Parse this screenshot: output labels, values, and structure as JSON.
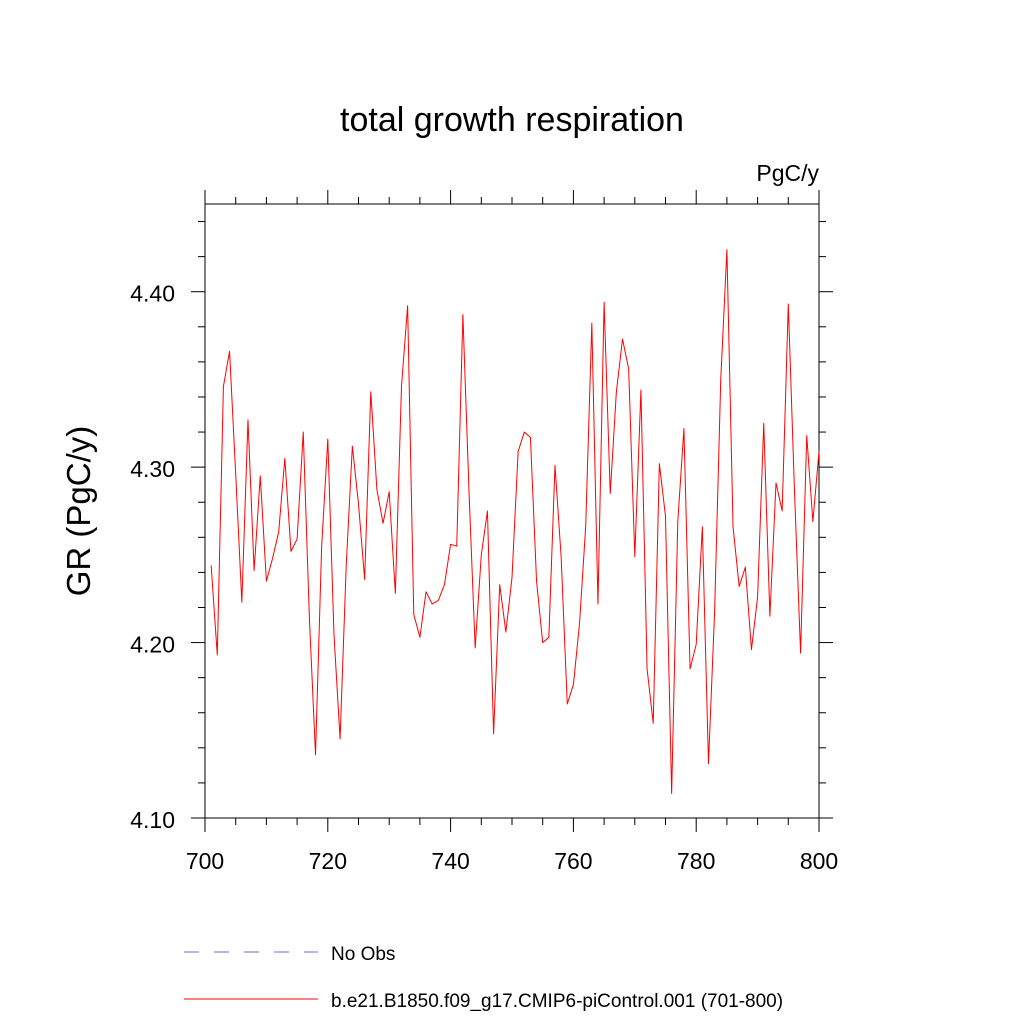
{
  "chart_data": {
    "type": "line",
    "title": "total growth respiration",
    "units_label": "PgC/y",
    "ylabel": "GR  (PgC/y)",
    "xlabel": "",
    "xlim": [
      700,
      800
    ],
    "ylim": [
      4.1,
      4.45
    ],
    "xticks": [
      700,
      720,
      740,
      760,
      780,
      800
    ],
    "xtick_labels": [
      "700",
      "720",
      "740",
      "760",
      "780",
      "800"
    ],
    "yticks": [
      4.1,
      4.2,
      4.3,
      4.4
    ],
    "ytick_labels": [
      "4.10",
      "4.20",
      "4.30",
      "4.40"
    ],
    "grid": false,
    "legend_position": "bottom",
    "series": [
      {
        "name": "No Obs",
        "color": "#7b68c8",
        "style": "dashed",
        "x": [],
        "values": []
      },
      {
        "name": "b.e21.B1850.f09_g17.CMIP6-piControl.001 (701-800)",
        "color": "#ff0000",
        "style": "solid",
        "x": [
          701,
          702,
          703,
          704,
          705,
          706,
          707,
          708,
          709,
          710,
          711,
          712,
          713,
          714,
          715,
          716,
          717,
          718,
          719,
          720,
          721,
          722,
          723,
          724,
          725,
          726,
          727,
          728,
          729,
          730,
          731,
          732,
          733,
          734,
          735,
          736,
          737,
          738,
          739,
          740,
          741,
          742,
          743,
          744,
          745,
          746,
          747,
          748,
          749,
          750,
          751,
          752,
          753,
          754,
          755,
          756,
          757,
          758,
          759,
          760,
          761,
          762,
          763,
          764,
          765,
          766,
          767,
          768,
          769,
          770,
          771,
          772,
          773,
          774,
          775,
          776,
          777,
          778,
          779,
          780,
          781,
          782,
          783,
          784,
          785,
          786,
          787,
          788,
          789,
          790,
          791,
          792,
          793,
          794,
          795,
          796,
          797,
          798,
          799,
          800
        ],
        "values": [
          4.244,
          4.193,
          4.346,
          4.366,
          4.296,
          4.223,
          4.327,
          4.241,
          4.295,
          4.235,
          4.248,
          4.263,
          4.305,
          4.252,
          4.259,
          4.32,
          4.214,
          4.136,
          4.255,
          4.316,
          4.205,
          4.145,
          4.244,
          4.312,
          4.279,
          4.236,
          4.343,
          4.287,
          4.268,
          4.286,
          4.228,
          4.346,
          4.392,
          4.216,
          4.203,
          4.229,
          4.222,
          4.224,
          4.233,
          4.256,
          4.255,
          4.387,
          4.286,
          4.197,
          4.25,
          4.275,
          4.148,
          4.233,
          4.206,
          4.237,
          4.309,
          4.32,
          4.317,
          4.235,
          4.2,
          4.203,
          4.301,
          4.249,
          4.165,
          4.176,
          4.211,
          4.266,
          4.382,
          4.222,
          4.394,
          4.285,
          4.343,
          4.373,
          4.356,
          4.249,
          4.344,
          4.185,
          4.154,
          4.302,
          4.272,
          4.114,
          4.269,
          4.322,
          4.185,
          4.199,
          4.266,
          4.131,
          4.218,
          4.35,
          4.424,
          4.266,
          4.232,
          4.243,
          4.196,
          4.226,
          4.325,
          4.215,
          4.291,
          4.275,
          4.393,
          4.287,
          4.194,
          4.318,
          4.269,
          4.309
        ]
      }
    ]
  }
}
